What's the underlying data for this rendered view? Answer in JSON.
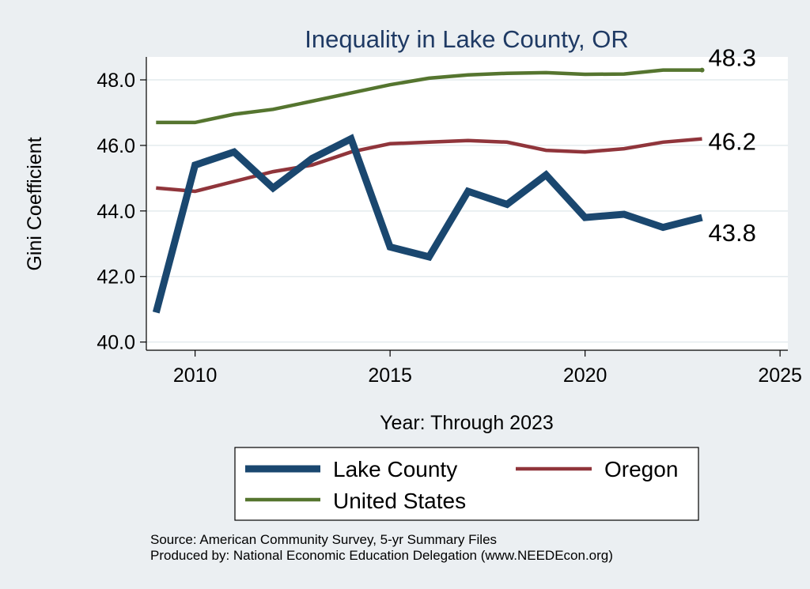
{
  "chart_data": {
    "type": "line",
    "title": "Inequality in Lake County, OR",
    "xlabel": "Year: Through 2023",
    "ylabel": "Gini Coefficient",
    "xlim": [
      2008.75,
      2025.2
    ],
    "ylim": [
      39.75,
      48.7
    ],
    "x_ticks": [
      2010,
      2015,
      2020,
      2025
    ],
    "y_ticks": [
      40.0,
      42.0,
      44.0,
      46.0,
      48.0
    ],
    "y_tick_labels": [
      "40.0",
      "42.0",
      "44.0",
      "46.0",
      "48.0"
    ],
    "grid": true,
    "x": [
      2009,
      2010,
      2011,
      2012,
      2013,
      2014,
      2015,
      2016,
      2017,
      2018,
      2019,
      2020,
      2021,
      2022,
      2023
    ],
    "series": [
      {
        "name": "Lake County",
        "color": "#1a476f",
        "width": "thick",
        "values": [
          40.9,
          45.4,
          45.8,
          44.7,
          45.6,
          46.2,
          42.9,
          42.6,
          44.6,
          44.2,
          45.1,
          43.8,
          43.9,
          43.5,
          43.8
        ],
        "end_label": "43.8"
      },
      {
        "name": "Oregon",
        "color": "#90353b",
        "width": "medium",
        "values": [
          44.7,
          44.6,
          44.9,
          45.2,
          45.4,
          45.8,
          46.05,
          46.1,
          46.15,
          46.1,
          45.85,
          45.8,
          45.9,
          46.1,
          46.2
        ],
        "end_label": "46.2"
      },
      {
        "name": "United States",
        "color": "#55752f",
        "width": "medium",
        "values": [
          46.7,
          46.7,
          46.95,
          47.1,
          47.35,
          47.6,
          47.85,
          48.05,
          48.15,
          48.2,
          48.22,
          48.17,
          48.18,
          48.3,
          48.3
        ],
        "end_label": "48.3"
      }
    ],
    "legend": {
      "position": "bottom",
      "entries": [
        "Lake County",
        "Oregon",
        "United States"
      ]
    },
    "source_lines": [
      "Source: American Community Survey, 5-yr Summary Files",
      "Produced by: National Economic Education Delegation (www.NEEDEcon.org)"
    ]
  }
}
